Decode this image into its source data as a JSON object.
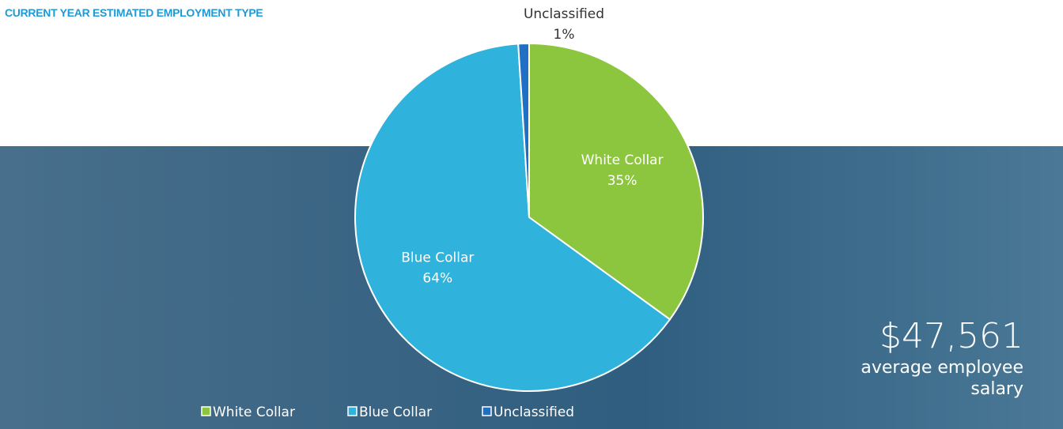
{
  "chart_data": {
    "type": "pie",
    "title": "CURRENT YEAR ESTIMATED EMPLOYMENT TYPE",
    "categories": [
      "White Collar",
      "Blue Collar",
      "Unclassified"
    ],
    "values": [
      35,
      64,
      1
    ],
    "value_labels": [
      "35%",
      "64%",
      "1%"
    ],
    "colors": [
      "#8cc63e",
      "#2fb2dc",
      "#1f6fc4"
    ],
    "legend": "bottom",
    "callout": {
      "value": 47561,
      "label": "$47,561",
      "caption": "average employee salary"
    }
  }
}
